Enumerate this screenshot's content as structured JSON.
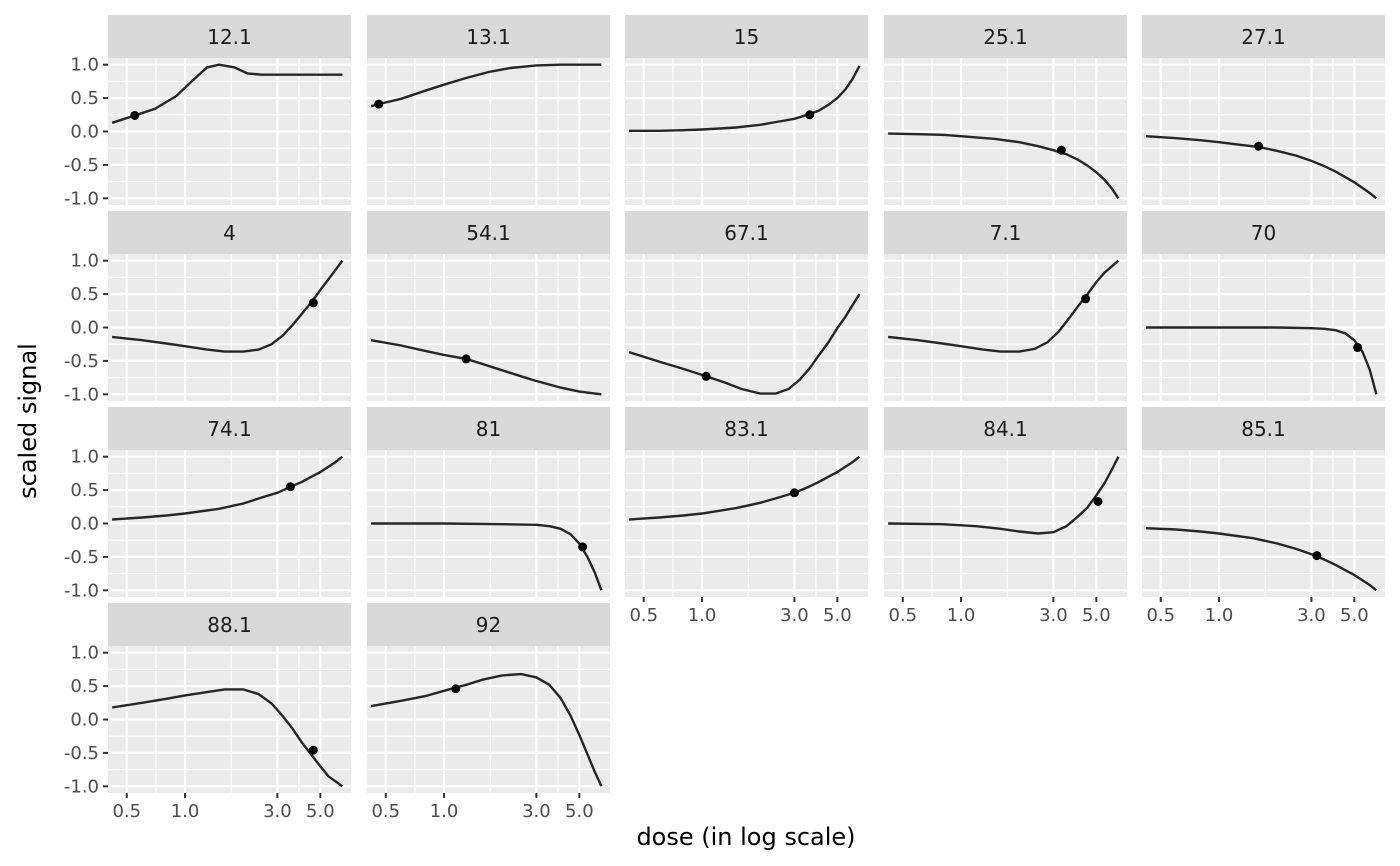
{
  "chart_data": {
    "type": "line",
    "xlabel": "dose (in log scale)",
    "ylabel": "scaled signal",
    "x_scale": "log",
    "xlim": [
      0.4,
      7.2
    ],
    "ylim": [
      -1.1,
      1.1
    ],
    "x_ticks": [
      0.5,
      1.0,
      3.0,
      5.0
    ],
    "x_tick_labels": [
      "0.5",
      "1.0",
      "3.0",
      "5.0"
    ],
    "y_ticks": [
      1.0,
      0.5,
      0.0,
      -0.5,
      -1.0
    ],
    "y_tick_labels": [
      "1.0",
      "0.5",
      "0.0",
      "-0.5",
      "-1.0"
    ],
    "grid": true,
    "facets": [
      {
        "label": "12.1",
        "x": [
          0.42,
          0.55,
          0.7,
          0.9,
          1.1,
          1.3,
          1.5,
          1.8,
          2.1,
          2.5,
          3.0,
          4.0,
          5.0,
          6.5
        ],
        "y": [
          0.13,
          0.24,
          0.34,
          0.53,
          0.77,
          0.96,
          1.0,
          0.96,
          0.87,
          0.85,
          0.85,
          0.85,
          0.85,
          0.85
        ],
        "point": {
          "x": 0.55,
          "y": 0.24
        }
      },
      {
        "label": "13.1",
        "x": [
          0.42,
          0.46,
          0.6,
          0.8,
          1.0,
          1.3,
          1.7,
          2.2,
          3.0,
          4.0,
          5.5,
          6.5
        ],
        "y": [
          0.38,
          0.41,
          0.49,
          0.61,
          0.7,
          0.8,
          0.89,
          0.95,
          0.99,
          1.0,
          1.0,
          1.0
        ],
        "point": {
          "x": 0.46,
          "y": 0.41
        }
      },
      {
        "label": "15",
        "x": [
          0.42,
          0.6,
          0.8,
          1.0,
          1.5,
          2.0,
          2.5,
          3.0,
          3.5,
          4.0,
          4.5,
          5.0,
          5.5,
          6.0,
          6.5
        ],
        "y": [
          0.01,
          0.01,
          0.02,
          0.03,
          0.06,
          0.1,
          0.15,
          0.19,
          0.25,
          0.31,
          0.4,
          0.5,
          0.63,
          0.79,
          0.98
        ],
        "point": {
          "x": 3.6,
          "y": 0.25
        }
      },
      {
        "label": "25.1",
        "x": [
          0.42,
          0.6,
          0.8,
          1.0,
          1.5,
          2.0,
          2.5,
          3.0,
          3.5,
          4.0,
          4.5,
          5.0,
          5.5,
          6.0,
          6.5
        ],
        "y": [
          -0.03,
          -0.04,
          -0.05,
          -0.07,
          -0.11,
          -0.16,
          -0.22,
          -0.28,
          -0.34,
          -0.42,
          -0.51,
          -0.61,
          -0.72,
          -0.85,
          -1.0
        ],
        "point": {
          "x": 3.3,
          "y": -0.28
        }
      },
      {
        "label": "27.1",
        "x": [
          0.42,
          0.6,
          0.8,
          1.0,
          1.3,
          1.6,
          2.0,
          2.5,
          3.0,
          3.5,
          4.0,
          5.0,
          6.0,
          6.5
        ],
        "y": [
          -0.07,
          -0.1,
          -0.13,
          -0.16,
          -0.2,
          -0.23,
          -0.29,
          -0.36,
          -0.44,
          -0.52,
          -0.6,
          -0.76,
          -0.92,
          -1.0
        ],
        "point": {
          "x": 1.6,
          "y": -0.22
        }
      },
      {
        "label": "4",
        "x": [
          0.42,
          0.6,
          0.8,
          1.0,
          1.3,
          1.6,
          2.0,
          2.4,
          2.8,
          3.2,
          3.6,
          4.0,
          4.5,
          5.0,
          5.5,
          6.5
        ],
        "y": [
          -0.14,
          -0.19,
          -0.24,
          -0.28,
          -0.33,
          -0.36,
          -0.36,
          -0.33,
          -0.25,
          -0.12,
          0.04,
          0.2,
          0.38,
          0.56,
          0.72,
          1.0
        ],
        "point": {
          "x": 4.6,
          "y": 0.37
        }
      },
      {
        "label": "54.1",
        "x": [
          0.42,
          0.6,
          0.8,
          1.0,
          1.3,
          1.6,
          2.0,
          2.5,
          3.0,
          4.0,
          5.0,
          6.5
        ],
        "y": [
          -0.19,
          -0.27,
          -0.35,
          -0.41,
          -0.47,
          -0.55,
          -0.64,
          -0.73,
          -0.8,
          -0.9,
          -0.96,
          -1.0
        ],
        "point": {
          "x": 1.3,
          "y": -0.47
        }
      },
      {
        "label": "67.1",
        "x": [
          0.42,
          0.6,
          0.8,
          1.0,
          1.3,
          1.6,
          2.0,
          2.4,
          2.8,
          3.2,
          3.6,
          4.0,
          4.5,
          5.0,
          5.5,
          6.5
        ],
        "y": [
          -0.37,
          -0.51,
          -0.62,
          -0.71,
          -0.82,
          -0.92,
          -0.99,
          -0.99,
          -0.92,
          -0.78,
          -0.61,
          -0.42,
          -0.22,
          -0.01,
          0.16,
          0.5
        ],
        "point": {
          "x": 1.05,
          "y": -0.73
        }
      },
      {
        "label": "7.1",
        "x": [
          0.42,
          0.6,
          0.8,
          1.0,
          1.3,
          1.6,
          2.0,
          2.4,
          2.8,
          3.2,
          3.6,
          4.0,
          4.5,
          5.0,
          5.5,
          6.5
        ],
        "y": [
          -0.14,
          -0.19,
          -0.24,
          -0.28,
          -0.33,
          -0.36,
          -0.36,
          -0.32,
          -0.22,
          -0.06,
          0.13,
          0.31,
          0.5,
          0.68,
          0.82,
          1.0
        ],
        "point": {
          "x": 4.4,
          "y": 0.43
        }
      },
      {
        "label": "70",
        "x": [
          0.42,
          1.0,
          2.0,
          3.0,
          3.5,
          4.0,
          4.5,
          5.0,
          5.5,
          6.0,
          6.5
        ],
        "y": [
          0.0,
          0.0,
          0.0,
          -0.01,
          -0.02,
          -0.04,
          -0.09,
          -0.19,
          -0.36,
          -0.63,
          -1.0
        ],
        "point": {
          "x": 5.2,
          "y": -0.3
        }
      },
      {
        "label": "74.1",
        "x": [
          0.42,
          0.6,
          0.8,
          1.0,
          1.5,
          2.0,
          2.5,
          3.0,
          3.5,
          4.0,
          4.5,
          5.0,
          5.5,
          6.0,
          6.5
        ],
        "y": [
          0.06,
          0.09,
          0.12,
          0.15,
          0.22,
          0.3,
          0.39,
          0.46,
          0.55,
          0.62,
          0.7,
          0.77,
          0.85,
          0.92,
          1.0
        ],
        "point": {
          "x": 3.5,
          "y": 0.55
        }
      },
      {
        "label": "81",
        "x": [
          0.42,
          1.0,
          2.0,
          3.0,
          3.5,
          4.0,
          4.5,
          5.0,
          5.5,
          6.0,
          6.5
        ],
        "y": [
          0.0,
          0.0,
          -0.01,
          -0.02,
          -0.04,
          -0.08,
          -0.16,
          -0.3,
          -0.5,
          -0.73,
          -1.0
        ],
        "point": {
          "x": 5.2,
          "y": -0.35
        }
      },
      {
        "label": "83.1",
        "x": [
          0.42,
          0.6,
          0.8,
          1.0,
          1.5,
          2.0,
          2.5,
          3.0,
          3.5,
          4.0,
          4.5,
          5.0,
          5.5,
          6.0,
          6.5
        ],
        "y": [
          0.06,
          0.09,
          0.12,
          0.15,
          0.23,
          0.31,
          0.39,
          0.46,
          0.54,
          0.62,
          0.7,
          0.77,
          0.85,
          0.92,
          1.0
        ],
        "point": {
          "x": 3.0,
          "y": 0.46
        }
      },
      {
        "label": "84.1",
        "x": [
          0.42,
          0.8,
          1.2,
          1.6,
          2.0,
          2.5,
          3.0,
          3.5,
          4.0,
          4.5,
          5.0,
          5.5,
          6.0,
          6.5
        ],
        "y": [
          0.0,
          -0.01,
          -0.04,
          -0.08,
          -0.12,
          -0.15,
          -0.13,
          -0.04,
          0.1,
          0.24,
          0.42,
          0.6,
          0.8,
          1.0
        ],
        "point": {
          "x": 5.1,
          "y": 0.33
        }
      },
      {
        "label": "85.1",
        "x": [
          0.42,
          0.6,
          0.8,
          1.0,
          1.5,
          2.0,
          2.5,
          3.0,
          3.5,
          4.0,
          4.5,
          5.0,
          5.5,
          6.0,
          6.5
        ],
        "y": [
          -0.07,
          -0.09,
          -0.12,
          -0.15,
          -0.22,
          -0.3,
          -0.38,
          -0.46,
          -0.54,
          -0.62,
          -0.7,
          -0.77,
          -0.85,
          -0.92,
          -1.0
        ],
        "point": {
          "x": 3.2,
          "y": -0.48
        }
      },
      {
        "label": "88.1",
        "x": [
          0.42,
          0.6,
          0.8,
          1.0,
          1.3,
          1.6,
          2.0,
          2.4,
          2.8,
          3.2,
          3.6,
          4.0,
          4.5,
          5.0,
          5.5,
          6.5
        ],
        "y": [
          0.18,
          0.25,
          0.31,
          0.36,
          0.41,
          0.45,
          0.45,
          0.38,
          0.24,
          0.05,
          -0.14,
          -0.34,
          -0.53,
          -0.7,
          -0.85,
          -1.0
        ],
        "point": {
          "x": 4.6,
          "y": -0.46
        }
      },
      {
        "label": "92",
        "x": [
          0.42,
          0.6,
          0.8,
          1.0,
          1.3,
          1.6,
          2.0,
          2.5,
          3.0,
          3.5,
          4.0,
          4.5,
          5.0,
          5.5,
          6.0,
          6.5
        ],
        "y": [
          0.2,
          0.28,
          0.35,
          0.43,
          0.52,
          0.6,
          0.66,
          0.68,
          0.63,
          0.52,
          0.32,
          0.06,
          -0.23,
          -0.52,
          -0.78,
          -1.0
        ],
        "point": {
          "x": 1.15,
          "y": 0.46
        }
      }
    ]
  }
}
